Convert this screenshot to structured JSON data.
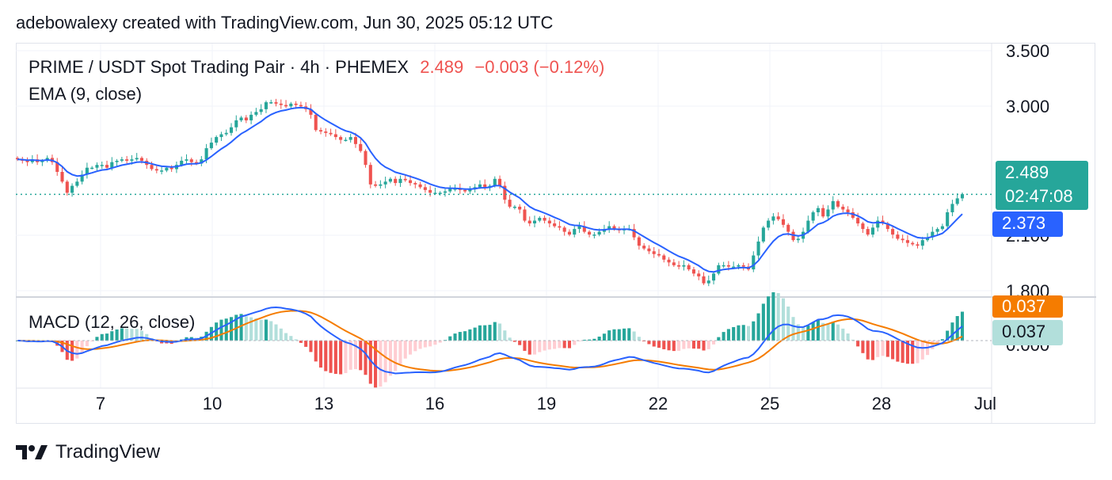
{
  "header": {
    "attribution": "adebowalexy created with TradingView.com, Jun 30, 2025 05:12 UTC"
  },
  "legend": {
    "pair": "PRIME / USDT Spot Trading Pair · 4h · PHEMEX",
    "price": "2.489",
    "change": "−0.003 (−0.12%)",
    "ema": "EMA (9, close)",
    "macd": "MACD (12, 26, close)"
  },
  "badges": {
    "price": "2.489",
    "countdown": "02:47:08",
    "ema": "2.373",
    "macd": "0.037",
    "signal": "0.037",
    "macd_zero": "0.000"
  },
  "colors": {
    "up": "#26a69a",
    "down": "#ef5350",
    "ema": "#2962ff",
    "macd_line": "#2962ff",
    "signal_line": "#f57c00",
    "hist_up_strong": "#26a69a",
    "hist_up_weak": "#b2dfdb",
    "hist_down_strong": "#ef5350",
    "hist_down_weak": "#ffcdd2"
  },
  "footer": {
    "brand": "TradingView"
  },
  "chart_data": [
    {
      "type": "candlestick",
      "title": "PRIME / USDT Spot Trading Pair · 4h · PHEMEX",
      "x_ticks": [
        "7",
        "10",
        "13",
        "16",
        "19",
        "22",
        "25",
        "28",
        "Jul"
      ],
      "y_ticks": [
        "3.500",
        "3.000",
        "2.500",
        "2.100",
        "1.800"
      ],
      "ylim": [
        1.78,
        3.52
      ],
      "current_price": 2.489,
      "overlays": [
        {
          "name": "EMA (9, close)",
          "last": 2.373
        }
      ],
      "close": [
        2.74,
        2.73,
        2.72,
        2.74,
        2.72,
        2.73,
        2.75,
        2.72,
        2.65,
        2.58,
        2.5,
        2.55,
        2.58,
        2.63,
        2.68,
        2.68,
        2.7,
        2.7,
        2.68,
        2.72,
        2.73,
        2.74,
        2.73,
        2.74,
        2.75,
        2.73,
        2.7,
        2.67,
        2.66,
        2.66,
        2.68,
        2.67,
        2.7,
        2.73,
        2.74,
        2.72,
        2.71,
        2.74,
        2.82,
        2.86,
        2.9,
        2.92,
        2.93,
        2.97,
        3.02,
        3.04,
        3.02,
        3.06,
        3.08,
        3.1,
        3.15,
        3.15,
        3.14,
        3.13,
        3.12,
        3.14,
        3.13,
        3.12,
        3.1,
        3.06,
        2.95,
        2.94,
        2.93,
        2.92,
        2.9,
        2.88,
        2.88,
        2.9,
        2.85,
        2.8,
        2.7,
        2.56,
        2.55,
        2.56,
        2.58,
        2.6,
        2.57,
        2.6,
        2.59,
        2.57,
        2.56,
        2.54,
        2.52,
        2.5,
        2.5,
        2.5,
        2.51,
        2.53,
        2.53,
        2.52,
        2.51,
        2.53,
        2.54,
        2.56,
        2.54,
        2.55,
        2.6,
        2.55,
        2.45,
        2.4,
        2.4,
        2.38,
        2.3,
        2.28,
        2.3,
        2.32,
        2.3,
        2.28,
        2.26,
        2.25,
        2.22,
        2.2,
        2.24,
        2.26,
        2.22,
        2.2,
        2.2,
        2.22,
        2.24,
        2.26,
        2.24,
        2.23,
        2.24,
        2.24,
        2.18,
        2.12,
        2.1,
        2.08,
        2.06,
        2.05,
        2.02,
        2.0,
        1.98,
        1.97,
        1.98,
        1.95,
        1.92,
        1.9,
        1.85,
        1.87,
        1.92,
        1.98,
        1.98,
        1.97,
        1.97,
        1.98,
        1.97,
        1.95,
        2.05,
        2.15,
        2.25,
        2.3,
        2.33,
        2.31,
        2.27,
        2.22,
        2.16,
        2.17,
        2.22,
        2.3,
        2.36,
        2.39,
        2.33,
        2.38,
        2.44,
        2.4,
        2.38,
        2.36,
        2.32,
        2.28,
        2.24,
        2.2,
        2.25,
        2.3,
        2.28,
        2.24,
        2.2,
        2.17,
        2.16,
        2.14,
        2.13,
        2.12,
        2.16,
        2.18,
        2.22,
        2.24,
        2.26,
        2.36,
        2.42,
        2.46,
        2.49
      ]
    },
    {
      "type": "bar",
      "title": "MACD (12, 26, close)",
      "series": [
        {
          "name": "MACD",
          "last": 0.037
        },
        {
          "name": "Signal",
          "last": 0.037
        }
      ]
    }
  ]
}
